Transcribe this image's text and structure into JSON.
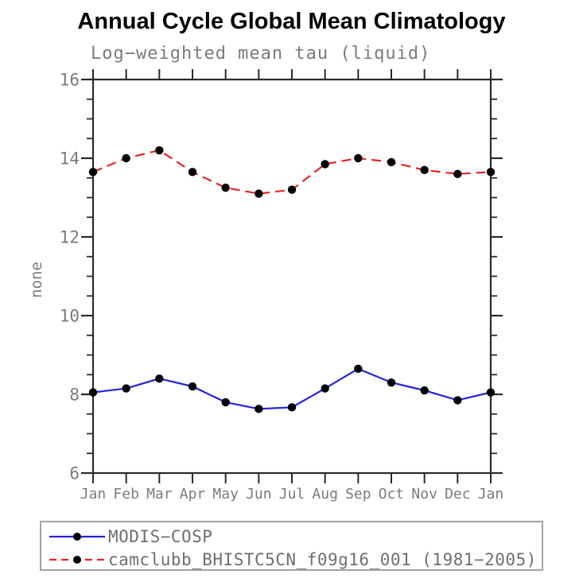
{
  "chart_data": {
    "type": "line",
    "title": "Annual Cycle Global Mean Climatology",
    "subtitle": "Log−weighted mean tau (liquid)",
    "ylabel": "none",
    "xlabel": "",
    "categories": [
      "Jan",
      "Feb",
      "Mar",
      "Apr",
      "May",
      "Jun",
      "Jul",
      "Aug",
      "Sep",
      "Oct",
      "Nov",
      "Dec",
      "Jan"
    ],
    "ylim": [
      6,
      16
    ],
    "ytick_major": [
      6,
      8,
      10,
      12,
      14,
      16
    ],
    "ytick_minor_step": 0.5,
    "grid": false,
    "legend_position": "bottom-left",
    "series": [
      {
        "name": "MODIS−COSP",
        "color": "#2222dd",
        "line_style": "solid",
        "marker": "filled-circle",
        "marker_color": "#000000",
        "values": [
          8.05,
          8.15,
          8.4,
          8.2,
          7.8,
          7.63,
          7.67,
          8.15,
          8.65,
          8.3,
          8.1,
          7.85,
          8.05
        ]
      },
      {
        "name": "camclubb_BHISTC5CN_f09g16_001 (1981−2005)",
        "color": "#ee2222",
        "line_style": "dashed",
        "marker": "filled-circle",
        "marker_color": "#000000",
        "values": [
          13.65,
          14.0,
          14.2,
          13.65,
          13.25,
          13.1,
          13.2,
          13.85,
          14.0,
          13.9,
          13.7,
          13.6,
          13.65
        ]
      }
    ]
  },
  "colors": {
    "background": "#ffffff",
    "axis": "#2a2a2a",
    "label_gray": "#7b7b7b",
    "legend_border": "#a3a3a3",
    "series_blue": "#2222dd",
    "series_red": "#ee2222",
    "marker_black": "#000000"
  }
}
